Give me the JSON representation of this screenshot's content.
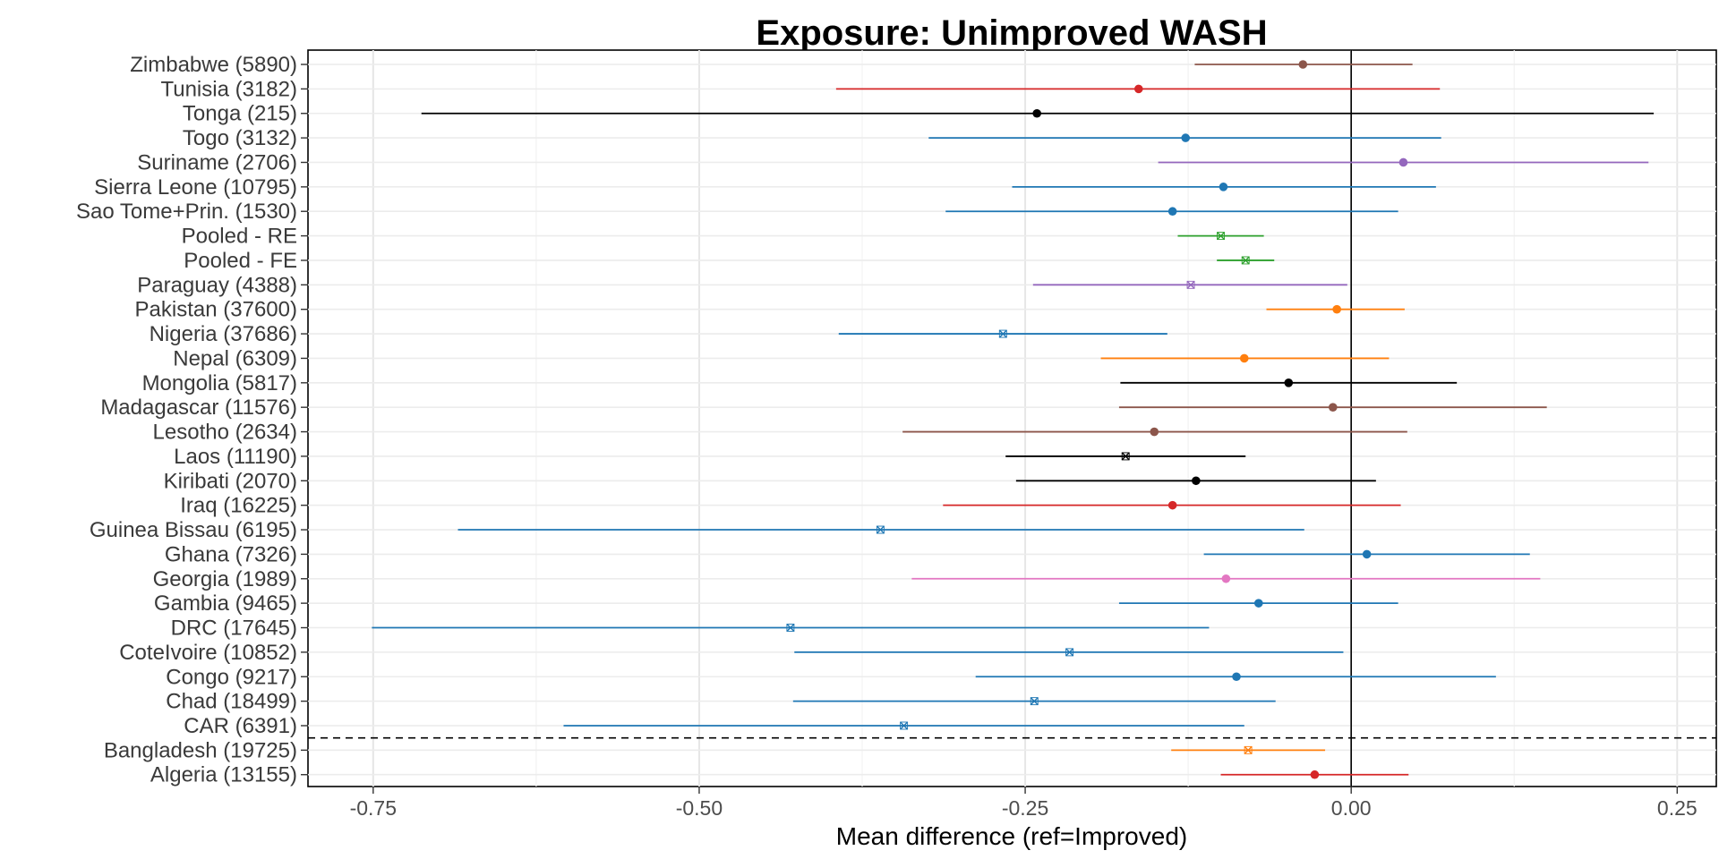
{
  "chart_data": {
    "type": "forest",
    "title": "Exposure: Unimproved WASH",
    "xlabel": "Mean difference (ref=Improved)",
    "ylabel": "",
    "xlim": [
      -0.8,
      0.28
    ],
    "xticks": [
      -0.75,
      -0.5,
      -0.25,
      0.0,
      0.25
    ],
    "xtick_labels": [
      "-0.75",
      "-0.50",
      "-0.25",
      "0.00",
      "0.25"
    ],
    "reference_line_x": 0.0,
    "grid": true,
    "legend": "none",
    "separator_after": "CAR (6391)",
    "rows": [
      {
        "label": "Zimbabwe (5890)",
        "est": -0.037,
        "lo": -0.12,
        "hi": 0.047,
        "color": "#8c564b",
        "marker": "dot"
      },
      {
        "label": "Tunisia (3182)",
        "est": -0.163,
        "lo": -0.395,
        "hi": 0.068,
        "color": "#d62728",
        "marker": "dot"
      },
      {
        "label": "Tonga (215)",
        "est": -0.241,
        "lo": -0.713,
        "hi": 0.232,
        "color": "#000000",
        "marker": "dot"
      },
      {
        "label": "Togo (3132)",
        "est": -0.127,
        "lo": -0.324,
        "hi": 0.069,
        "color": "#1f77b4",
        "marker": "dot"
      },
      {
        "label": "Suriname (2706)",
        "est": 0.04,
        "lo": -0.148,
        "hi": 0.228,
        "color": "#9467bd",
        "marker": "dot"
      },
      {
        "label": "Sierra Leone (10795)",
        "est": -0.098,
        "lo": -0.26,
        "hi": 0.065,
        "color": "#1f77b4",
        "marker": "dot"
      },
      {
        "label": "Sao Tome+Prin. (1530)",
        "est": -0.137,
        "lo": -0.311,
        "hi": 0.036,
        "color": "#1f77b4",
        "marker": "dot"
      },
      {
        "label": "Pooled - RE",
        "est": -0.1,
        "lo": -0.133,
        "hi": -0.067,
        "color": "#2ca02c",
        "marker": "cross"
      },
      {
        "label": "Pooled - FE",
        "est": -0.081,
        "lo": -0.103,
        "hi": -0.059,
        "color": "#2ca02c",
        "marker": "cross"
      },
      {
        "label": "Paraguay (4388)",
        "est": -0.123,
        "lo": -0.244,
        "hi": -0.003,
        "color": "#9467bd",
        "marker": "cross"
      },
      {
        "label": "Pakistan (37600)",
        "est": -0.011,
        "lo": -0.065,
        "hi": 0.041,
        "color": "#ff7f0e",
        "marker": "dot"
      },
      {
        "label": "Nigeria (37686)",
        "est": -0.267,
        "lo": -0.393,
        "hi": -0.141,
        "color": "#1f77b4",
        "marker": "cross"
      },
      {
        "label": "Nepal (6309)",
        "est": -0.082,
        "lo": -0.192,
        "hi": 0.029,
        "color": "#ff7f0e",
        "marker": "dot"
      },
      {
        "label": "Mongolia (5817)",
        "est": -0.048,
        "lo": -0.177,
        "hi": 0.081,
        "color": "#000000",
        "marker": "dot"
      },
      {
        "label": "Madagascar (11576)",
        "est": -0.014,
        "lo": -0.178,
        "hi": 0.15,
        "color": "#8c564b",
        "marker": "dot"
      },
      {
        "label": "Lesotho (2634)",
        "est": -0.151,
        "lo": -0.344,
        "hi": 0.043,
        "color": "#8c564b",
        "marker": "dot"
      },
      {
        "label": "Laos (11190)",
        "est": -0.173,
        "lo": -0.265,
        "hi": -0.081,
        "color": "#000000",
        "marker": "cross"
      },
      {
        "label": "Kiribati (2070)",
        "est": -0.119,
        "lo": -0.257,
        "hi": 0.019,
        "color": "#000000",
        "marker": "dot"
      },
      {
        "label": "Iraq (16225)",
        "est": -0.137,
        "lo": -0.313,
        "hi": 0.038,
        "color": "#d62728",
        "marker": "dot"
      },
      {
        "label": "Guinea Bissau (6195)",
        "est": -0.361,
        "lo": -0.685,
        "hi": -0.036,
        "color": "#1f77b4",
        "marker": "cross"
      },
      {
        "label": "Ghana (7326)",
        "est": 0.012,
        "lo": -0.113,
        "hi": 0.137,
        "color": "#1f77b4",
        "marker": "dot"
      },
      {
        "label": "Georgia (1989)",
        "est": -0.096,
        "lo": -0.337,
        "hi": 0.145,
        "color": "#e377c2",
        "marker": "dot"
      },
      {
        "label": "Gambia (9465)",
        "est": -0.071,
        "lo": -0.178,
        "hi": 0.036,
        "color": "#1f77b4",
        "marker": "dot"
      },
      {
        "label": "DRC (17645)",
        "est": -0.43,
        "lo": -0.751,
        "hi": -0.109,
        "color": "#1f77b4",
        "marker": "cross"
      },
      {
        "label": "CoteIvoire (10852)",
        "est": -0.216,
        "lo": -0.427,
        "hi": -0.006,
        "color": "#1f77b4",
        "marker": "cross"
      },
      {
        "label": "Congo (9217)",
        "est": -0.088,
        "lo": -0.288,
        "hi": 0.111,
        "color": "#1f77b4",
        "marker": "dot"
      },
      {
        "label": "Chad (18499)",
        "est": -0.243,
        "lo": -0.428,
        "hi": -0.058,
        "color": "#1f77b4",
        "marker": "cross"
      },
      {
        "label": "CAR (6391)",
        "est": -0.343,
        "lo": -0.604,
        "hi": -0.082,
        "color": "#1f77b4",
        "marker": "cross"
      },
      {
        "label": "Bangladesh (19725)",
        "est": -0.079,
        "lo": -0.138,
        "hi": -0.02,
        "color": "#ff7f0e",
        "marker": "cross"
      },
      {
        "label": "Algeria (13155)",
        "est": -0.028,
        "lo": -0.1,
        "hi": 0.044,
        "color": "#d62728",
        "marker": "dot"
      }
    ]
  }
}
